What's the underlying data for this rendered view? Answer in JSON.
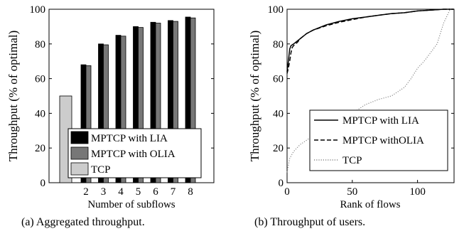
{
  "chart_data": [
    {
      "type": "bar",
      "caption": "(a)  Aggregated throughput.",
      "xlabel": "Number of subflows",
      "ylabel": "Throughput (% of optimal)",
      "ylim": [
        0,
        100
      ],
      "yticks": [
        0,
        20,
        40,
        60,
        80,
        100
      ],
      "grid": false,
      "legend_position": "bottom-right",
      "tcp": {
        "name": "TCP",
        "value": 50,
        "color": "#cccccc"
      },
      "categories": [
        "2",
        "3",
        "4",
        "5",
        "6",
        "7",
        "8"
      ],
      "series": [
        {
          "name": "MPTCP with LIA",
          "color": "#000000",
          "values": [
            68,
            80,
            85,
            90,
            92.5,
            93.5,
            95.5
          ]
        },
        {
          "name": "MPTCP with OLIA",
          "color": "#777777",
          "values": [
            67.5,
            79.5,
            84.5,
            89.5,
            92,
            93,
            95
          ]
        }
      ]
    },
    {
      "type": "line",
      "caption": "(b)  Throughput of users.",
      "xlabel": "Rank of flows",
      "ylabel": "Throughput (% of optimal)",
      "xlim": [
        0,
        128
      ],
      "ylim": [
        0,
        100
      ],
      "xticks": [
        0,
        50,
        100
      ],
      "yticks": [
        0,
        20,
        40,
        60,
        80,
        100
      ],
      "grid": false,
      "legend_position": "bottom-right",
      "series": [
        {
          "name": "MPTCP with LIA",
          "style": "solid",
          "x": [
            0,
            1,
            2,
            3,
            5,
            10,
            15,
            20,
            30,
            40,
            50,
            60,
            70,
            80,
            90,
            100,
            110,
            120,
            128
          ],
          "y": [
            64,
            70,
            77,
            79,
            80,
            83,
            86,
            88,
            91,
            93,
            94.5,
            95.5,
            96.5,
            97.5,
            98,
            99,
            99.5,
            100,
            100
          ]
        },
        {
          "name": "MPTCP withOLIA",
          "style": "dashed",
          "x": [
            0,
            1,
            2,
            3,
            4,
            5,
            8,
            10,
            15,
            20,
            30,
            40,
            50,
            60,
            70,
            80,
            90,
            100,
            110,
            120,
            128
          ],
          "y": [
            63,
            66,
            70,
            75,
            78,
            79,
            81,
            83,
            86,
            88,
            90.5,
            92.5,
            94,
            95.5,
            96.5,
            97.5,
            98,
            99,
            99.5,
            100,
            100
          ]
        },
        {
          "name": "TCP",
          "style": "dotted",
          "x": [
            0,
            2,
            5,
            10,
            20,
            30,
            40,
            50,
            60,
            70,
            80,
            90,
            95,
            100,
            105,
            110,
            115,
            120,
            125,
            128
          ],
          "y": [
            6,
            14,
            18,
            22,
            27,
            32,
            36,
            40,
            45,
            48,
            50,
            55,
            60,
            66,
            70,
            75,
            80,
            92,
            100,
            100
          ]
        }
      ]
    }
  ]
}
